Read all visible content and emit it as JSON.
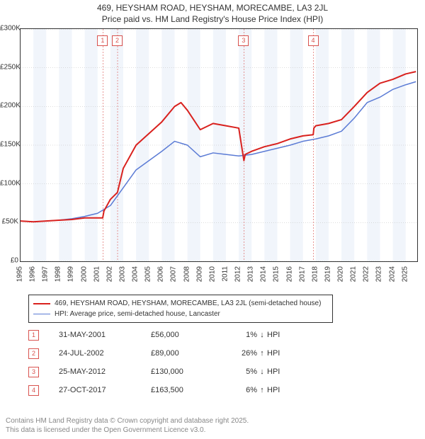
{
  "title_line1": "469, HEYSHAM ROAD, HEYSHAM, MORECAMBE, LA3 2JL",
  "title_line2": "Price paid vs. HM Land Registry's House Price Index (HPI)",
  "chart": {
    "type": "line",
    "background_color": "#ffffff",
    "border_color": "#333333",
    "grid_color": "#bbbbbb",
    "band_color": "#e6edf7",
    "x_years": [
      1995,
      1996,
      1997,
      1998,
      1999,
      2000,
      2001,
      2002,
      2003,
      2004,
      2005,
      2006,
      2007,
      2008,
      2009,
      2010,
      2011,
      2012,
      2013,
      2014,
      2015,
      2016,
      2017,
      2018,
      2019,
      2020,
      2021,
      2022,
      2023,
      2024,
      2025
    ],
    "xlim": [
      1995,
      2025.9
    ],
    "ylim": [
      0,
      300000
    ],
    "ytick_step": 50000,
    "ytick_labels": [
      "£0",
      "£50K",
      "£100K",
      "£150K",
      "£200K",
      "£250K",
      "£300K"
    ],
    "label_fontsize": 10,
    "series": [
      {
        "name": "469, HEYSHAM ROAD, HEYSHAM, MORECAMBE, LA3 2JL (semi-detached house)",
        "color": "#d9211e",
        "width": 2,
        "points": [
          [
            1995,
            52000
          ],
          [
            1996,
            51000
          ],
          [
            1997,
            52000
          ],
          [
            1998,
            53000
          ],
          [
            1999,
            54000
          ],
          [
            2000,
            56000
          ],
          [
            2001.4,
            56000
          ],
          [
            2001.5,
            65000
          ],
          [
            2002,
            80000
          ],
          [
            2002.55,
            89000
          ],
          [
            2003,
            120000
          ],
          [
            2004,
            150000
          ],
          [
            2005,
            165000
          ],
          [
            2006,
            180000
          ],
          [
            2007,
            200000
          ],
          [
            2007.5,
            205000
          ],
          [
            2008,
            195000
          ],
          [
            2009,
            170000
          ],
          [
            2010,
            178000
          ],
          [
            2011,
            175000
          ],
          [
            2012,
            172000
          ],
          [
            2012.4,
            130000
          ],
          [
            2012.5,
            138000
          ],
          [
            2013,
            142000
          ],
          [
            2014,
            148000
          ],
          [
            2015,
            152000
          ],
          [
            2016,
            158000
          ],
          [
            2017,
            162000
          ],
          [
            2017.8,
            163500
          ],
          [
            2017.85,
            172000
          ],
          [
            2018,
            175000
          ],
          [
            2019,
            178000
          ],
          [
            2020,
            183000
          ],
          [
            2021,
            200000
          ],
          [
            2022,
            218000
          ],
          [
            2023,
            230000
          ],
          [
            2024,
            235000
          ],
          [
            2025,
            242000
          ],
          [
            2025.8,
            245000
          ]
        ]
      },
      {
        "name": "HPI: Average price, semi-detached house, Lancaster",
        "color": "#5b7bd5",
        "width": 1.5,
        "points": [
          [
            1995,
            52000
          ],
          [
            1996,
            51000
          ],
          [
            1997,
            52000
          ],
          [
            1998,
            53000
          ],
          [
            1999,
            55000
          ],
          [
            2000,
            58000
          ],
          [
            2001,
            62000
          ],
          [
            2002,
            72000
          ],
          [
            2003,
            95000
          ],
          [
            2004,
            118000
          ],
          [
            2005,
            130000
          ],
          [
            2006,
            142000
          ],
          [
            2007,
            155000
          ],
          [
            2008,
            150000
          ],
          [
            2009,
            135000
          ],
          [
            2010,
            140000
          ],
          [
            2011,
            138000
          ],
          [
            2012,
            136000
          ],
          [
            2013,
            138000
          ],
          [
            2014,
            142000
          ],
          [
            2015,
            146000
          ],
          [
            2016,
            150000
          ],
          [
            2017,
            155000
          ],
          [
            2018,
            158000
          ],
          [
            2019,
            162000
          ],
          [
            2020,
            168000
          ],
          [
            2021,
            185000
          ],
          [
            2022,
            205000
          ],
          [
            2023,
            212000
          ],
          [
            2024,
            222000
          ],
          [
            2025,
            228000
          ],
          [
            2025.8,
            232000
          ]
        ]
      }
    ],
    "markers": [
      {
        "n": "1",
        "x": 2001.42
      },
      {
        "n": "2",
        "x": 2002.56
      },
      {
        "n": "3",
        "x": 2012.4
      },
      {
        "n": "4",
        "x": 2017.82
      }
    ]
  },
  "legend": {
    "items": [
      {
        "label": "469, HEYSHAM ROAD, HEYSHAM, MORECAMBE, LA3 2JL (semi-detached house)",
        "color": "#d9211e",
        "width": 2
      },
      {
        "label": "HPI: Average price, semi-detached house, Lancaster",
        "color": "#5b7bd5",
        "width": 1.5
      }
    ]
  },
  "sales": [
    {
      "n": "1",
      "date": "31-MAY-2001",
      "price": "£56,000",
      "pct": "1%",
      "arrow": "↓",
      "hpi": "HPI"
    },
    {
      "n": "2",
      "date": "24-JUL-2002",
      "price": "£89,000",
      "pct": "26%",
      "arrow": "↑",
      "hpi": "HPI"
    },
    {
      "n": "3",
      "date": "25-MAY-2012",
      "price": "£130,000",
      "pct": "5%",
      "arrow": "↓",
      "hpi": "HPI"
    },
    {
      "n": "4",
      "date": "27-OCT-2017",
      "price": "£163,500",
      "pct": "6%",
      "arrow": "↑",
      "hpi": "HPI"
    }
  ],
  "footer_line1": "Contains HM Land Registry data © Crown copyright and database right 2025.",
  "footer_line2": "This data is licensed under the Open Government Licence v3.0."
}
